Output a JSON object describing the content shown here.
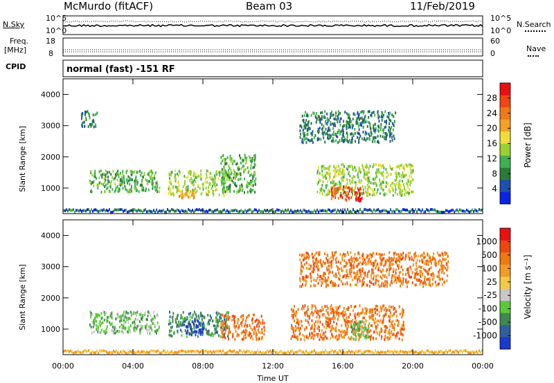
{
  "header": {
    "site": "McMurdo (fitACF)",
    "beam": "Beam 03",
    "date": "11/Feb/2019"
  },
  "top_panels": {
    "nsky_label": "N.Sky",
    "nsky_ticks": [
      "10^5",
      "10^0"
    ],
    "nsearch_label": "N.Search",
    "nsearch_ticks": [
      "10^5",
      "10^0"
    ],
    "freq_label_1": "Freq.",
    "freq_label_2": "[MHz]",
    "freq_ticks": [
      "18",
      "8"
    ],
    "nave_label": "Nave",
    "nave_ticks": [
      "60",
      "0"
    ],
    "cpid_label": "CPID",
    "cpid_text": "normal (fast) -151 RF"
  },
  "chart_data": [
    {
      "type": "heatmap",
      "title": "",
      "ylabel": "Slant Range [km]",
      "xlabel": "Time UT",
      "x_ticks": [
        "00:00",
        "04:00",
        "08:00",
        "12:00",
        "16:00",
        "20:00",
        "00:00"
      ],
      "x_range_hours": [
        0,
        24
      ],
      "y_ticks": [
        1000,
        2000,
        3000,
        4000
      ],
      "ylim": [
        180,
        4500
      ],
      "colorbar": {
        "label": "Power [dB]",
        "ticks": [
          "4",
          "8",
          "12",
          "16",
          "20",
          "24",
          "28"
        ],
        "colors": [
          "#0a23e6",
          "#1f4fb0",
          "#2c7a3b",
          "#3fb04f",
          "#9ad12e",
          "#f0dd3a",
          "#f5a022",
          "#f07a16",
          "#f04612",
          "#e81010"
        ]
      },
      "echo_regions": [
        {
          "t0": 1.5,
          "t1": 5.5,
          "r0": 900,
          "r1": 1600,
          "level": 3
        },
        {
          "t0": 6.0,
          "t1": 9.5,
          "r0": 800,
          "r1": 1600,
          "level": 4
        },
        {
          "t0": 6.5,
          "t1": 7.5,
          "r0": 700,
          "r1": 1000,
          "level": 6
        },
        {
          "t0": 9.0,
          "t1": 11.0,
          "r0": 900,
          "r1": 2100,
          "level": 3
        },
        {
          "t0": 14.5,
          "t1": 20.0,
          "r0": 800,
          "r1": 1800,
          "level": 4
        },
        {
          "t0": 15.3,
          "t1": 17.0,
          "r0": 650,
          "r1": 1100,
          "level": 8
        },
        {
          "t0": 16.5,
          "t1": 17.2,
          "r0": 600,
          "r1": 900,
          "level": 9
        },
        {
          "t0": 1.0,
          "t1": 2.0,
          "r0": 3000,
          "r1": 3500,
          "level": 2
        },
        {
          "t0": 13.5,
          "t1": 19.0,
          "r0": 2500,
          "r1": 3500,
          "level": 2
        }
      ]
    },
    {
      "type": "heatmap",
      "title": "",
      "ylabel": "Slant Range [km]",
      "xlabel": "Time UT",
      "x_ticks": [
        "00:00",
        "04:00",
        "08:00",
        "12:00",
        "16:00",
        "20:00",
        "00:00"
      ],
      "x_range_hours": [
        0,
        24
      ],
      "y_ticks": [
        1000,
        2000,
        3000,
        4000
      ],
      "ylim": [
        180,
        4500
      ],
      "colorbar": {
        "label": "Velocity [m s⁻¹]",
        "ticks": [
          "1000",
          "500",
          "100",
          "25",
          "-25",
          "-100",
          "-500",
          "-1000"
        ],
        "colors": [
          "#1a3acc",
          "#2f5f9e",
          "#3f8a52",
          "#5cc93a",
          "#c8c8c8",
          "#f5c845",
          "#f29c22",
          "#f07812",
          "#ee4610",
          "#e81010"
        ]
      },
      "echo_regions": [
        {
          "t0": 1.5,
          "t1": 5.5,
          "r0": 900,
          "r1": 1600,
          "level": 3
        },
        {
          "t0": 6.0,
          "t1": 9.5,
          "r0": 800,
          "r1": 1600,
          "level": 2
        },
        {
          "t0": 7.0,
          "t1": 8.0,
          "r0": 850,
          "r1": 1300,
          "level": 0
        },
        {
          "t0": 9.0,
          "t1": 11.5,
          "r0": 700,
          "r1": 1500,
          "level": 7
        },
        {
          "t0": 13.0,
          "t1": 19.5,
          "r0": 700,
          "r1": 1800,
          "level": 7
        },
        {
          "t0": 16.3,
          "t1": 17.5,
          "r0": 700,
          "r1": 1300,
          "level": 3
        },
        {
          "t0": 13.5,
          "t1": 22.0,
          "r0": 2400,
          "r1": 3500,
          "level": 7
        }
      ]
    }
  ]
}
